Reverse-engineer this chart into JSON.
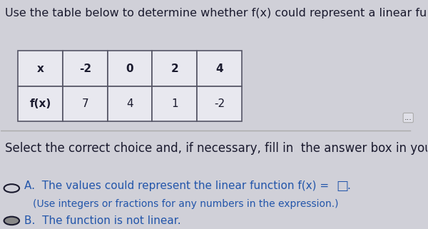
{
  "bg_color": "#d0d0d8",
  "title_text": "Use the table below to determine whether f(x) could represent a linear function. If it c",
  "title_fontsize": 11.5,
  "table_x_values": [
    "x",
    "-2",
    "0",
    "2",
    "4"
  ],
  "table_fx_values": [
    "f(x)",
    "7",
    "4",
    "1",
    "-2"
  ],
  "select_text": "Select the correct choice and, if necessary, fill in  the answer box in your choice belo",
  "select_fontsize": 12,
  "choice_a_text": "A.  The values could represent the linear function f(x) =",
  "choice_a_box": "□",
  "choice_a_sub": "(Use integers or fractions for any numbers in the expression.)",
  "choice_b_text": "B.  The function is not linear.",
  "text_color": "#1a1a2e",
  "blue_color": "#2255aa"
}
